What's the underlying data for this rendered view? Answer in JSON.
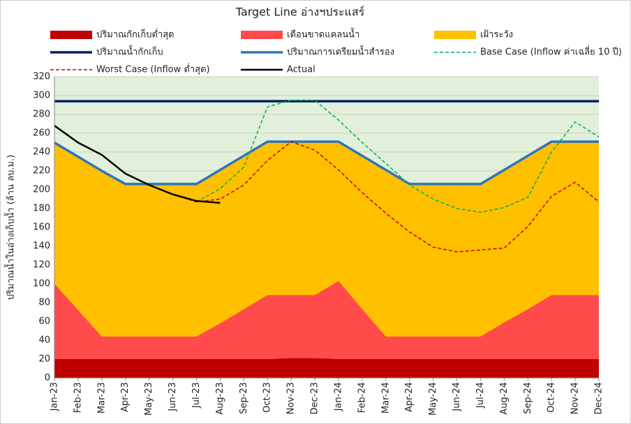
{
  "chart_data": {
    "type": "line",
    "title": "Target Line อ่างฯประแสร์",
    "y_label": "ปริมาณน้ำในอ่างเก็บน้ำ (ล้าน ลบ.ม.)",
    "categories": [
      "Jan-23",
      "Feb-23",
      "Mar-23",
      "Apr-23",
      "May-23",
      "Jun-23",
      "Jul-23",
      "Aug-23",
      "Sep-23",
      "Oct-23",
      "Nov-23",
      "Dec-23",
      "Jan-24",
      "Feb-24",
      "Mar-24",
      "Apr-24",
      "May-24",
      "Jun-24",
      "Jul-24",
      "Aug-24",
      "Sep-24",
      "Oct-24",
      "Nov-24",
      "Dec-24"
    ],
    "ylim": [
      0,
      320
    ],
    "yticks": [
      0,
      20,
      40,
      60,
      80,
      100,
      120,
      140,
      160,
      180,
      200,
      220,
      240,
      260,
      280,
      300,
      320
    ],
    "grid": true,
    "background": "#e2efda",
    "series": [
      {
        "name": "ปริมาณกักเก็บต่ำสุด",
        "type": "area",
        "color": "#c00000",
        "values": [
          20,
          20,
          20,
          20,
          20,
          20,
          20,
          20,
          20,
          20,
          21,
          21,
          20,
          20,
          20,
          20,
          20,
          20,
          20,
          20,
          20,
          20,
          20,
          20
        ]
      },
      {
        "name": "เตือนขาดแคลนน้ำ",
        "type": "area",
        "color": "#ff4b4b",
        "values": [
          100,
          72,
          44,
          44,
          44,
          44,
          44,
          58,
          73,
          88,
          88,
          88,
          103,
          73,
          44,
          44,
          44,
          44,
          44,
          59,
          73,
          88,
          88,
          88
        ]
      },
      {
        "name": "เฝ้าระวัง",
        "type": "area",
        "color": "#ffc000",
        "values": [
          250,
          235,
          220,
          206,
          206,
          206,
          206,
          221,
          236,
          251,
          251,
          251,
          251,
          236,
          221,
          206,
          206,
          206,
          206,
          221,
          236,
          251,
          251,
          251
        ]
      },
      {
        "name": "ปริมาณน้ำกักเก็บ",
        "type": "line",
        "color": "#002060",
        "width": 3.5,
        "values": [
          294,
          294,
          294,
          294,
          294,
          294,
          294,
          294,
          294,
          294,
          294,
          294,
          294,
          294,
          294,
          294,
          294,
          294,
          294,
          294,
          294,
          294,
          294,
          294
        ]
      },
      {
        "name": "ปริมาณการเตรียมน้ำสำรอง",
        "type": "line",
        "color": "#2e75b6",
        "width": 3.5,
        "values": [
          250,
          235,
          220,
          206,
          206,
          206,
          206,
          221,
          236,
          251,
          251,
          251,
          251,
          236,
          221,
          206,
          206,
          206,
          206,
          221,
          236,
          251,
          251,
          251
        ]
      },
      {
        "name": "Base Case (Inflow ค่าเฉลี่ย 10 ปี)",
        "type": "line",
        "color": "#00b050",
        "width": 1.5,
        "dash": true,
        "values": [
          null,
          null,
          null,
          null,
          null,
          null,
          187,
          201,
          224,
          288,
          295,
          295,
          274,
          250,
          228,
          205,
          190,
          180,
          176,
          181,
          192,
          240,
          272,
          256
        ]
      },
      {
        "name": "Worst Case (Inflow ต่ำสุด)",
        "type": "line",
        "color": "#c00000",
        "width": 1.5,
        "dash": true,
        "values": [
          null,
          null,
          null,
          null,
          null,
          195,
          187,
          190,
          205,
          231,
          251,
          242,
          221,
          197,
          175,
          155,
          139,
          134,
          136,
          138,
          161,
          193,
          208,
          187
        ]
      },
      {
        "name": "Actual",
        "type": "line",
        "color": "#000000",
        "width": 2.5,
        "values": [
          268,
          250,
          237,
          217,
          205,
          195,
          188,
          186,
          null,
          null,
          null,
          null,
          null,
          null,
          null,
          null,
          null,
          null,
          null,
          null,
          null,
          null,
          null,
          null
        ]
      }
    ]
  }
}
